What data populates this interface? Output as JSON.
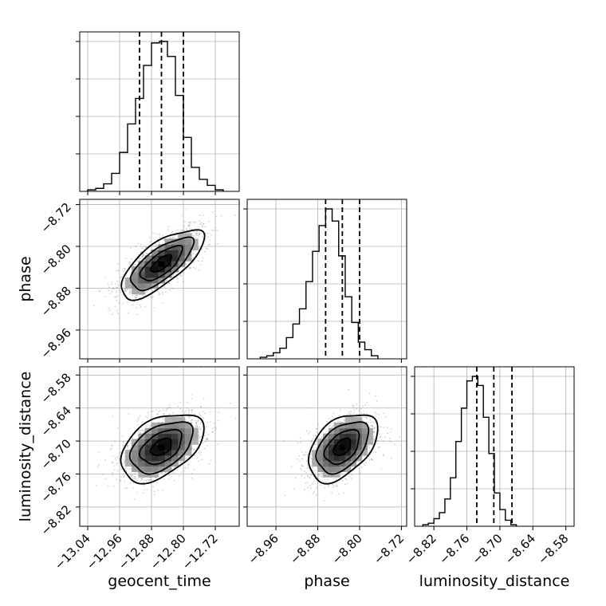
{
  "chart_data": {
    "type": "corner",
    "parameters": [
      "geocent_time",
      "phase",
      "luminosity_distance"
    ],
    "axis_ranges": {
      "geocent_time": [
        -13.06,
        -12.66
      ],
      "phase": [
        -9.015,
        -8.71
      ],
      "luminosity_distance": [
        -8.855,
        -8.565
      ]
    },
    "ticks": {
      "geocent_time": [
        "−13.04",
        "−12.96",
        "−12.88",
        "−12.80",
        "−12.72"
      ],
      "phase": [
        "−8.96",
        "−8.88",
        "−8.80",
        "−8.72"
      ],
      "luminosity_distance": [
        "−8.82",
        "−8.76",
        "−8.70",
        "−8.64",
        "−8.58"
      ]
    },
    "tick_values": {
      "geocent_time": [
        -13.04,
        -12.96,
        -12.88,
        -12.8,
        -12.72
      ],
      "phase": [
        -8.96,
        -8.88,
        -8.8,
        -8.72
      ],
      "luminosity_distance": [
        -8.82,
        -8.76,
        -8.7,
        -8.64,
        -8.58
      ]
    },
    "quantiles": {
      "geocent_time": [
        -12.91,
        -12.855,
        -12.8
      ],
      "phase": [
        -8.865,
        -8.833,
        -8.8
      ],
      "luminosity_distance": [
        -8.742,
        -8.711,
        -8.678
      ]
    },
    "histograms": {
      "geocent_time": {
        "edges_start": -13.04,
        "bin_width": 0.02,
        "counts": [
          1,
          2,
          5,
          12,
          26,
          45,
          62,
          84,
          99,
          100,
          90,
          64,
          36,
          16,
          8,
          4,
          1
        ]
      },
      "phase": {
        "edges_start": -8.99,
        "bin_width": 0.0125,
        "counts": [
          1,
          2,
          4,
          7,
          14,
          23,
          33,
          51,
          71,
          88,
          99,
          91,
          68,
          41,
          24,
          11,
          6,
          2
        ]
      },
      "luminosity_distance": {
        "edges_start": -8.84,
        "bin_width": 0.01,
        "counts": [
          1,
          2,
          5,
          9,
          18,
          32,
          56,
          78,
          96,
          99,
          93,
          72,
          48,
          22,
          11,
          4,
          1
        ]
      }
    },
    "grid": true
  },
  "labels": {
    "geocent_time": "geocent_time",
    "phase": "phase",
    "luminosity_distance": "luminosity_distance"
  }
}
